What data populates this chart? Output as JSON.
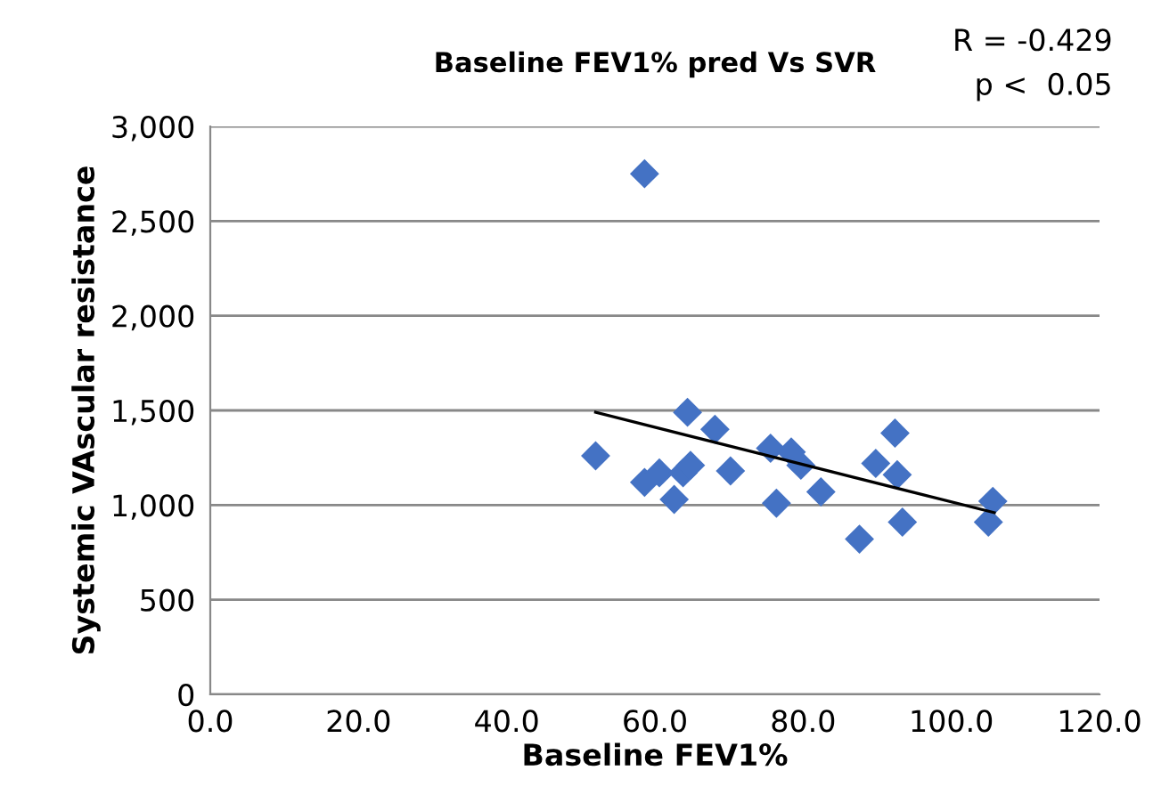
{
  "chart_data": {
    "type": "scatter",
    "title": "Baseline FEV1% pred Vs SVR",
    "xlabel": "Baseline FEV1%",
    "ylabel": "Systemic VAscular resistance",
    "annotations": [
      "R = -0.429",
      "p <  0.05"
    ],
    "series": [
      {
        "color": "#4472c4",
        "marker": "diamond",
        "x": [
          58.6,
          52.0,
          58.6,
          60.6,
          62.6,
          63.8,
          64.8,
          64.4,
          68.1,
          70.2,
          75.6,
          76.4,
          78.4,
          79.7,
          82.4,
          87.6,
          89.8,
          92.4,
          92.7,
          93.4,
          105.0,
          105.6
        ],
        "values": [
          2750,
          1260,
          1120,
          1170,
          1030,
          1170,
          1210,
          1490,
          1400,
          1180,
          1300,
          1010,
          1280,
          1210,
          1070,
          820,
          1220,
          1380,
          1160,
          910,
          910,
          1020
        ]
      },
      {
        "type": "line",
        "color": "#000000",
        "marker": "none",
        "x": [
          52.0,
          105.8
        ],
        "values": [
          1490,
          960
        ]
      }
    ],
    "xlim": [
      0,
      120
    ],
    "xticks": [
      {
        "value": 0,
        "label": "0.0"
      },
      {
        "value": 20,
        "label": "20.0"
      },
      {
        "value": 40,
        "label": "40.0"
      },
      {
        "value": 60,
        "label": "60.0"
      },
      {
        "value": 80,
        "label": "80.0"
      },
      {
        "value": 100,
        "label": "100.0"
      },
      {
        "value": 120,
        "label": "120.0"
      }
    ],
    "ylim": [
      0,
      3000
    ],
    "yticks": [
      {
        "value": 0,
        "label": "0"
      },
      {
        "value": 500,
        "label": "500"
      },
      {
        "value": 1000,
        "label": "1,000"
      },
      {
        "value": 1500,
        "label": "1,500"
      },
      {
        "value": 2000,
        "label": "2,000"
      },
      {
        "value": 2500,
        "label": "2,500"
      },
      {
        "value": 3000,
        "label": "3,000"
      }
    ],
    "grid": "y",
    "legend": false
  }
}
